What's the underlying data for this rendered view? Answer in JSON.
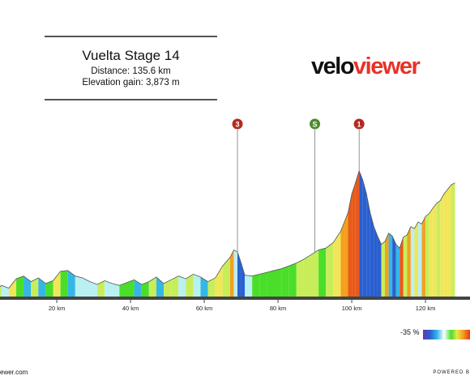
{
  "header": {
    "title": "Vuelta Stage 14",
    "distance": "Distance: 135.6 km",
    "elevation_gain": "Elevation gain: 3,873 m"
  },
  "logo": {
    "part1": "velo",
    "part2": "viewer"
  },
  "footer": {
    "left": "ewer.com",
    "right": "POWERED B"
  },
  "legend": {
    "min_label": "-35 %"
  },
  "markers": [
    {
      "label": "3",
      "km": 69,
      "color": "#b52a20"
    },
    {
      "label": "S",
      "km": 90,
      "color": "#4c8b2b"
    },
    {
      "label": "1",
      "km": 102,
      "color": "#b52a20"
    }
  ],
  "chart_data": {
    "type": "area",
    "xlabel": "",
    "ylabel": "",
    "x_tick_labels": [
      "20 km",
      "40 km",
      "60 km",
      "80 km",
      "100 km",
      "120 km"
    ],
    "x_ticks_km": [
      20,
      40,
      60,
      80,
      100,
      120
    ],
    "xlim_km": [
      3,
      128
    ],
    "profile": [
      [
        3,
        250
      ],
      [
        5,
        320
      ],
      [
        7,
        290
      ],
      [
        9,
        390
      ],
      [
        11,
        420
      ],
      [
        13,
        360
      ],
      [
        15,
        400
      ],
      [
        17,
        340
      ],
      [
        19,
        370
      ],
      [
        21,
        470
      ],
      [
        23,
        480
      ],
      [
        25,
        420
      ],
      [
        27,
        400
      ],
      [
        29,
        360
      ],
      [
        31,
        330
      ],
      [
        33,
        370
      ],
      [
        35,
        340
      ],
      [
        37,
        320
      ],
      [
        39,
        350
      ],
      [
        41,
        380
      ],
      [
        43,
        330
      ],
      [
        45,
        360
      ],
      [
        47,
        410
      ],
      [
        49,
        340
      ],
      [
        51,
        380
      ],
      [
        53,
        420
      ],
      [
        55,
        390
      ],
      [
        57,
        440
      ],
      [
        59,
        410
      ],
      [
        61,
        360
      ],
      [
        63,
        400
      ],
      [
        65,
        530
      ],
      [
        67,
        620
      ],
      [
        68,
        700
      ],
      [
        69,
        680
      ],
      [
        70,
        560
      ],
      [
        71,
        430
      ],
      [
        73,
        420
      ],
      [
        75,
        440
      ],
      [
        77,
        460
      ],
      [
        79,
        480
      ],
      [
        81,
        500
      ],
      [
        83,
        530
      ],
      [
        85,
        560
      ],
      [
        87,
        600
      ],
      [
        89,
        650
      ],
      [
        91,
        700
      ],
      [
        93,
        720
      ],
      [
        95,
        780
      ],
      [
        97,
        900
      ],
      [
        99,
        1100
      ],
      [
        100,
        1300
      ],
      [
        101,
        1420
      ],
      [
        102,
        1550
      ],
      [
        103,
        1450
      ],
      [
        104,
        1300
      ],
      [
        105,
        1100
      ],
      [
        106,
        950
      ],
      [
        107,
        850
      ],
      [
        108,
        760
      ],
      [
        109,
        790
      ],
      [
        110,
        880
      ],
      [
        111,
        850
      ],
      [
        112,
        760
      ],
      [
        113,
        720
      ],
      [
        114,
        840
      ],
      [
        115,
        860
      ],
      [
        116,
        950
      ],
      [
        117,
        930
      ],
      [
        118,
        1000
      ],
      [
        119,
        980
      ],
      [
        120,
        1060
      ],
      [
        121,
        1090
      ],
      [
        122,
        1150
      ],
      [
        123,
        1200
      ],
      [
        124,
        1230
      ],
      [
        125,
        1300
      ],
      [
        126,
        1350
      ],
      [
        127,
        1400
      ],
      [
        128,
        1420
      ]
    ]
  },
  "colors": {
    "baseline": "#444444",
    "gradient_scale": [
      "#6a3aa8",
      "#2a5fd0",
      "#35b7e6",
      "#ffffff",
      "#4ade2a",
      "#e4ea4a",
      "#f4a020",
      "#e23a1a"
    ]
  }
}
